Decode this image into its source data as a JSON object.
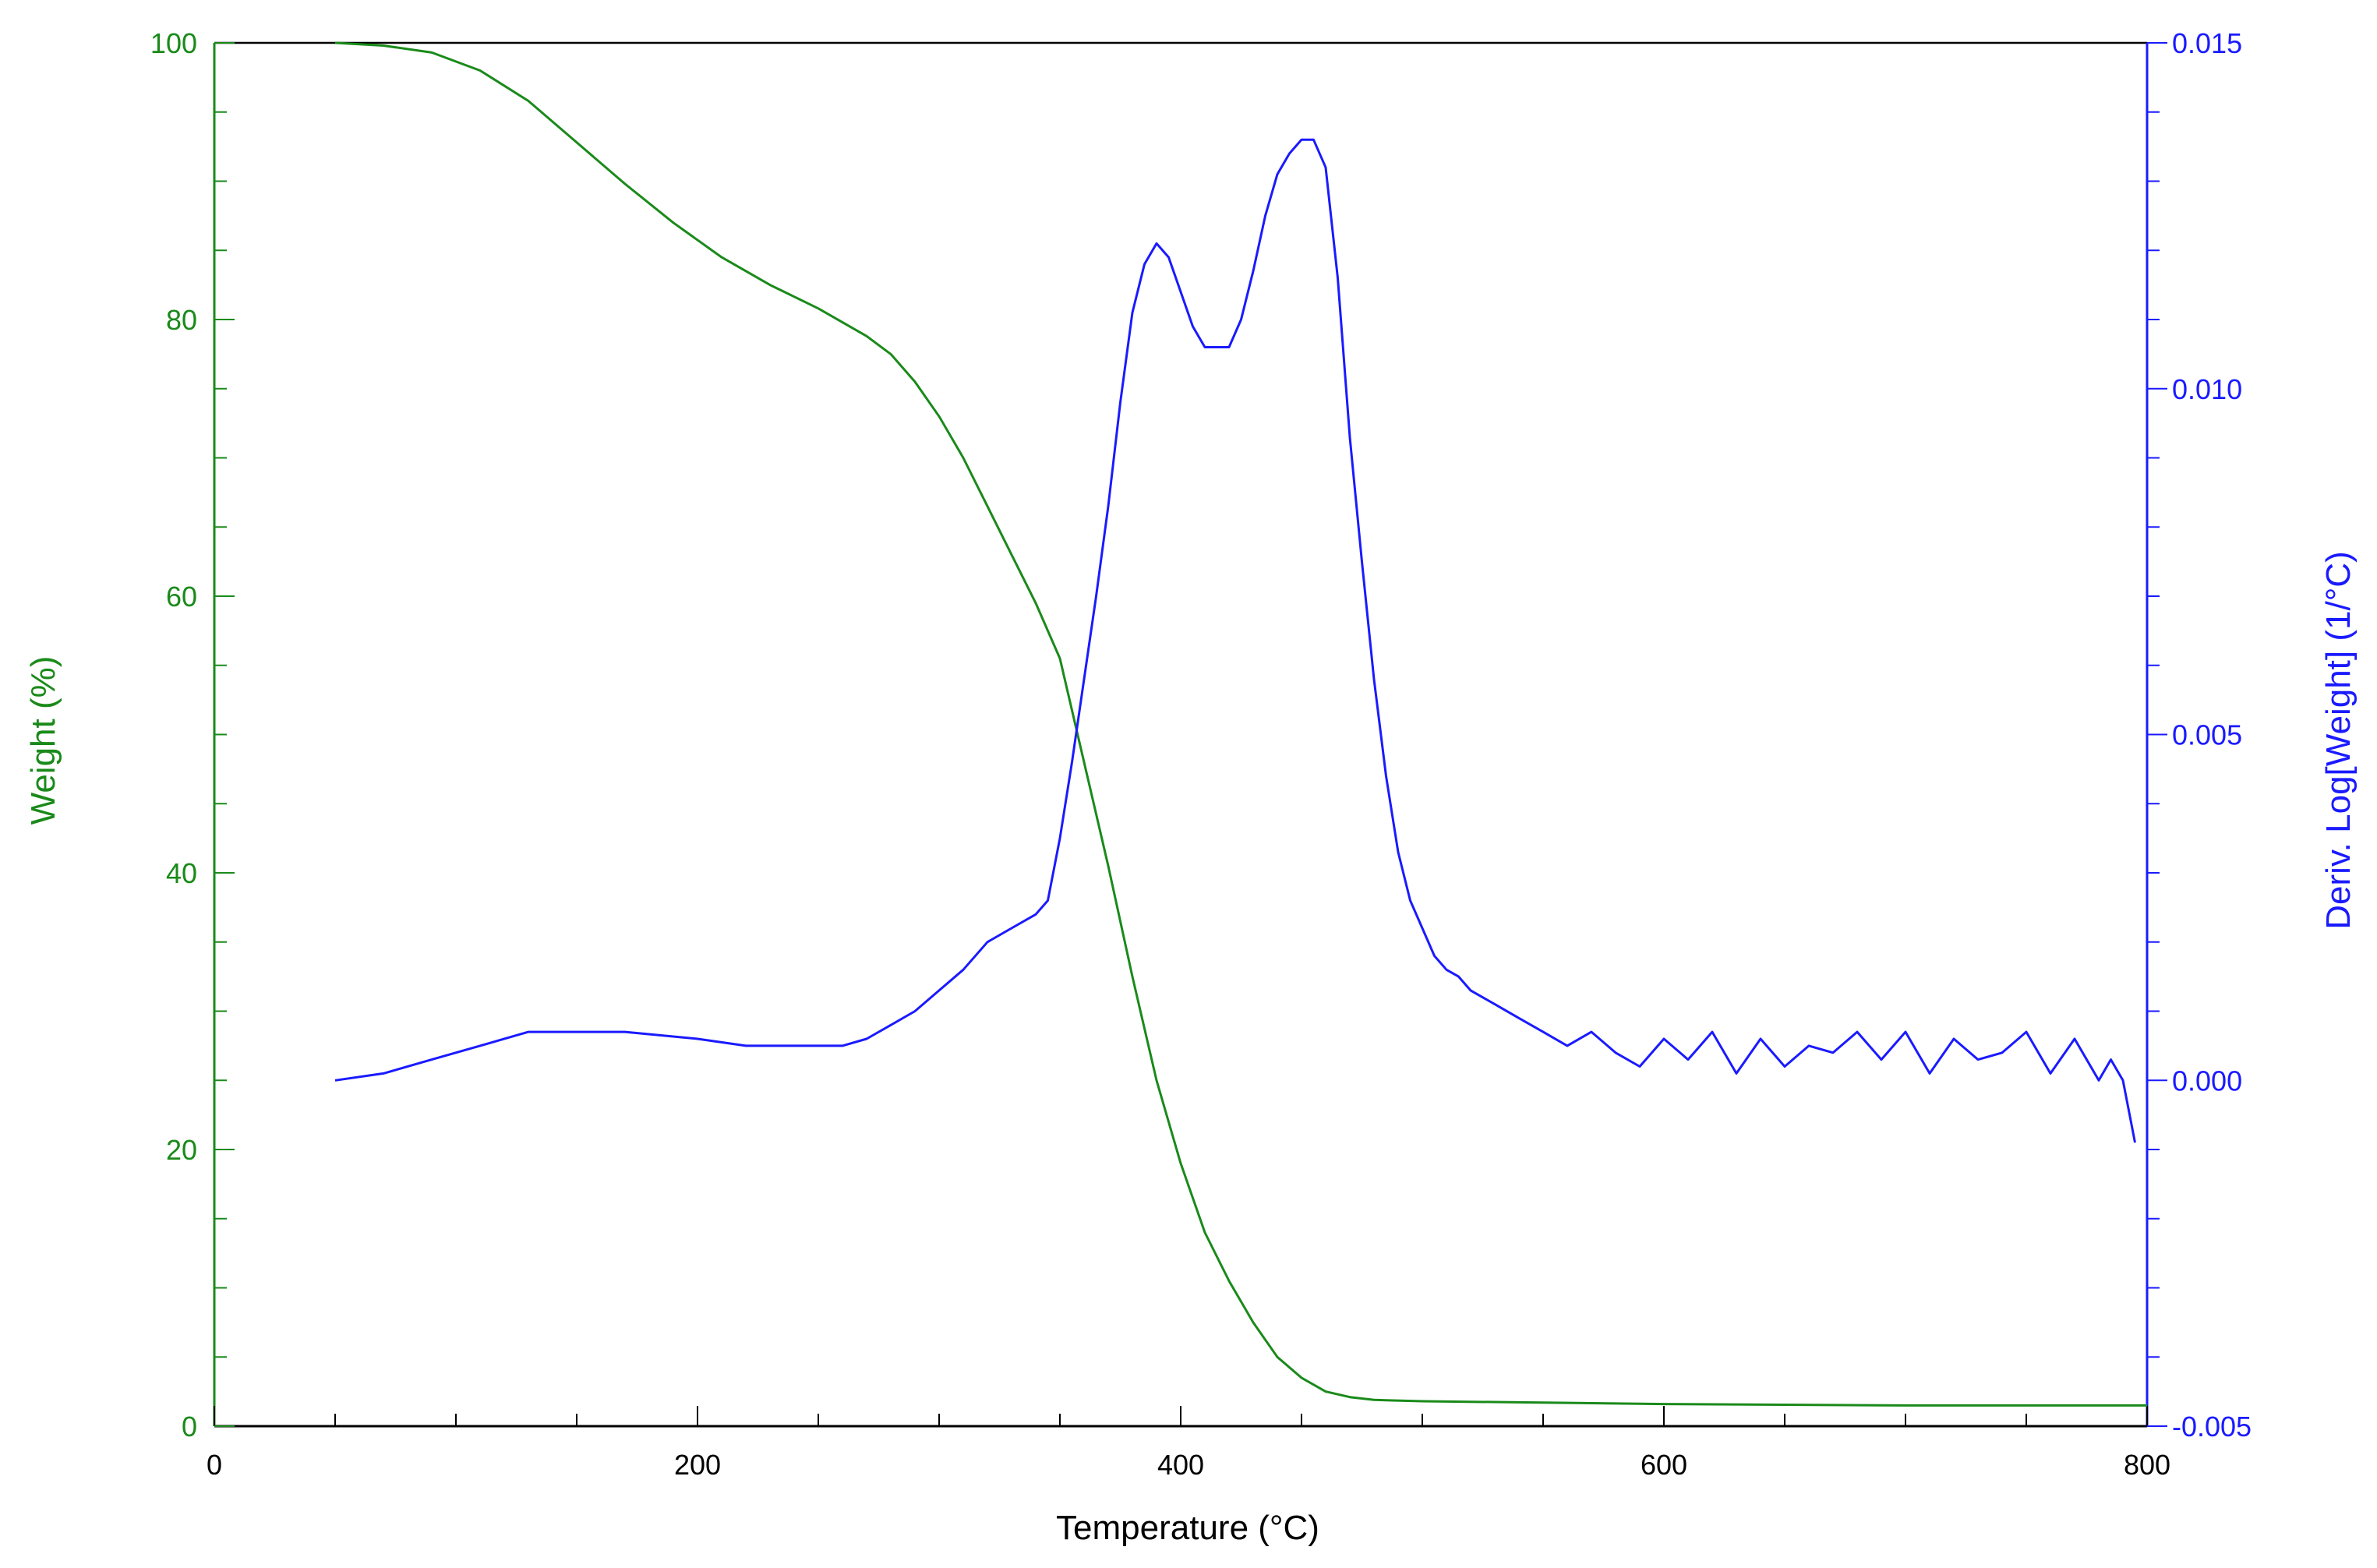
{
  "chart_data": {
    "type": "line",
    "title": "",
    "xlabel": "Temperature (°C)",
    "ylabel_left": "Weight (%)",
    "ylabel_right": "Deriv. Log[Weight] (1/°C)",
    "xlim": [
      0,
      800
    ],
    "ylim_left": [
      0,
      100
    ],
    "ylim_right": [
      -0.005,
      0.015
    ],
    "grid": false,
    "colors": {
      "weight": "#1a8a1a",
      "deriv": "#1a1aff",
      "frame": "#000000"
    },
    "x_ticks": [
      {
        "value": 0,
        "label": "0"
      },
      {
        "value": 200,
        "label": "200"
      },
      {
        "value": 400,
        "label": "400"
      },
      {
        "value": 600,
        "label": "600"
      },
      {
        "value": 800,
        "label": "800"
      }
    ],
    "y_left_ticks": [
      {
        "value": 0,
        "label": "0"
      },
      {
        "value": 20,
        "label": "20"
      },
      {
        "value": 40,
        "label": "40"
      },
      {
        "value": 60,
        "label": "60"
      },
      {
        "value": 80,
        "label": "80"
      },
      {
        "value": 100,
        "label": "100"
      }
    ],
    "y_right_ticks": [
      {
        "value": -0.005,
        "label": "-0.005"
      },
      {
        "value": 0.0,
        "label": "0.000"
      },
      {
        "value": 0.005,
        "label": "0.005"
      },
      {
        "value": 0.01,
        "label": "0.010"
      },
      {
        "value": 0.015,
        "label": "0.015"
      }
    ],
    "series": [
      {
        "key": "weight",
        "axis": "left",
        "x": [
          50,
          70,
          90,
          110,
          130,
          150,
          170,
          190,
          210,
          230,
          250,
          270,
          280,
          290,
          300,
          310,
          320,
          330,
          340,
          350,
          360,
          370,
          380,
          390,
          400,
          410,
          420,
          430,
          440,
          450,
          460,
          470,
          480,
          500,
          550,
          600,
          650,
          700,
          750,
          800
        ],
        "y": [
          100,
          99.8,
          99.3,
          98.0,
          95.8,
          92.8,
          89.8,
          87.0,
          84.5,
          82.5,
          80.8,
          78.8,
          77.5,
          75.5,
          73.0,
          70.0,
          66.5,
          63.0,
          59.5,
          55.5,
          48.0,
          40.5,
          32.5,
          25.0,
          19.0,
          14.0,
          10.5,
          7.5,
          5.0,
          3.5,
          2.5,
          2.1,
          1.9,
          1.8,
          1.7,
          1.6,
          1.55,
          1.5,
          1.5,
          1.5
        ]
      },
      {
        "key": "deriv",
        "axis": "right",
        "x": [
          50,
          70,
          90,
          110,
          130,
          145,
          170,
          200,
          220,
          240,
          250,
          260,
          270,
          280,
          290,
          300,
          310,
          320,
          330,
          340,
          345,
          350,
          355,
          360,
          365,
          370,
          375,
          380,
          385,
          390,
          395,
          400,
          405,
          410,
          415,
          420,
          425,
          430,
          435,
          440,
          445,
          450,
          455,
          460,
          465,
          470,
          475,
          480,
          485,
          490,
          495,
          500,
          505,
          510,
          515,
          520,
          530,
          540,
          550,
          560,
          570,
          580,
          590,
          600,
          610,
          620,
          630,
          640,
          650,
          660,
          670,
          680,
          690,
          700,
          710,
          720,
          730,
          740,
          750,
          760,
          770,
          780,
          785,
          790,
          795
        ],
        "y": [
          0.0,
          0.0001,
          0.0003,
          0.0005,
          0.0007,
          0.0007,
          0.0007,
          0.0006,
          0.0005,
          0.0005,
          0.0005,
          0.0005,
          0.0006,
          0.0008,
          0.001,
          0.0013,
          0.0016,
          0.002,
          0.0022,
          0.0024,
          0.0026,
          0.0035,
          0.0046,
          0.0058,
          0.007,
          0.0083,
          0.0098,
          0.0111,
          0.0118,
          0.0121,
          0.0119,
          0.0114,
          0.0109,
          0.0106,
          0.0106,
          0.0106,
          0.011,
          0.0117,
          0.0125,
          0.0131,
          0.0134,
          0.0136,
          0.0136,
          0.0132,
          0.0116,
          0.0093,
          0.0075,
          0.0058,
          0.0044,
          0.0033,
          0.0026,
          0.0022,
          0.0018,
          0.0016,
          0.0015,
          0.0013,
          0.0011,
          0.0009,
          0.0007,
          0.0005,
          0.0007,
          0.0004,
          0.0002,
          0.0006,
          0.0003,
          0.0007,
          0.0001,
          0.0006,
          0.0002,
          0.0005,
          0.0004,
          0.0007,
          0.0003,
          0.0007,
          0.0001,
          0.0006,
          0.0003,
          0.0004,
          0.0007,
          0.0001,
          0.0006,
          0.0,
          0.0003,
          0.0,
          -0.0009
        ]
      }
    ]
  }
}
